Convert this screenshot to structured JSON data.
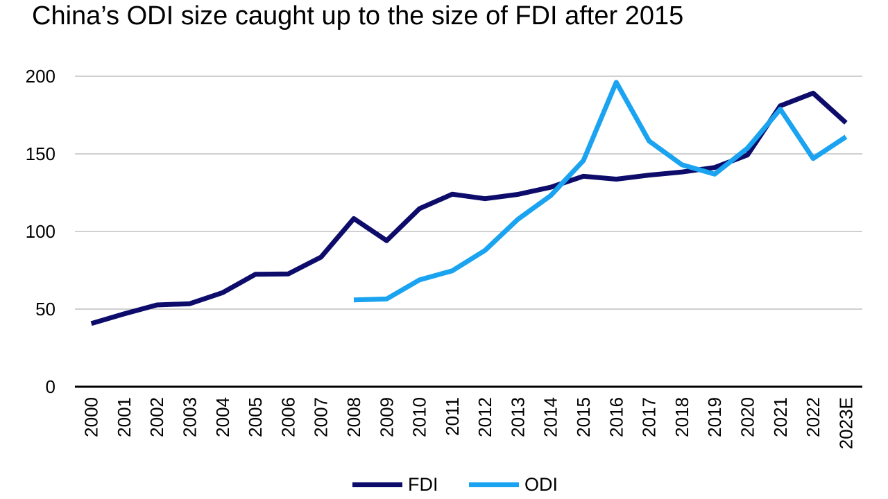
{
  "chart_data": {
    "type": "line",
    "title": "China’s ODI size caught up to the size of FDI after 2015",
    "xlabel": "",
    "ylabel": "",
    "ylim": [
      0,
      200
    ],
    "yticks": [
      0,
      50,
      100,
      150,
      200
    ],
    "grid": true,
    "legend_position": "bottom",
    "categories": [
      "2000",
      "2001",
      "2002",
      "2003",
      "2004",
      "2005",
      "2006",
      "2007",
      "2008",
      "2009",
      "2010",
      "2011",
      "2012",
      "2013",
      "2014",
      "2015",
      "2016",
      "2017",
      "2018",
      "2019",
      "2020",
      "2021",
      "2022",
      "2023E"
    ],
    "series": [
      {
        "name": "FDI",
        "color": "#0d0c6b",
        "values": [
          40.7,
          46.9,
          52.7,
          53.5,
          60.6,
          72.4,
          72.7,
          83.5,
          108.3,
          94.1,
          114.7,
          124.0,
          121.1,
          123.9,
          128.5,
          135.6,
          133.7,
          136.3,
          138.3,
          141.2,
          149.3,
          181.0,
          189.1,
          170.0
        ]
      },
      {
        "name": "ODI",
        "color": "#1aa3f0",
        "values": [
          null,
          null,
          null,
          null,
          null,
          null,
          null,
          null,
          55.9,
          56.5,
          68.8,
          74.7,
          87.8,
          107.8,
          123.1,
          145.7,
          196.1,
          158.3,
          143.0,
          136.9,
          153.7,
          178.8,
          147.0,
          161.0
        ]
      }
    ]
  }
}
